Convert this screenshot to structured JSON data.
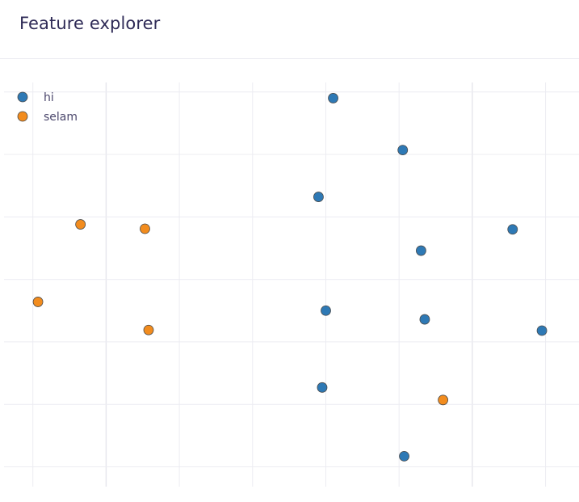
{
  "header": {
    "title": "Feature explorer"
  },
  "colors": {
    "title": "#2e2a56",
    "grid": "#ececf2",
    "grid_major": "#e6e6ec"
  },
  "chart_data": {
    "type": "scatter",
    "title": "",
    "xlabel": "",
    "ylabel": "",
    "xlim": [
      0.0,
      7.8
    ],
    "ylim": [
      0.0,
      6.5
    ],
    "grid": true,
    "legend_position": "top-left",
    "series": [
      {
        "name": "hi",
        "color": "#2e79b5",
        "points": [
          {
            "x": 4.1,
            "y": 5.9
          },
          {
            "x": 5.05,
            "y": 5.07
          },
          {
            "x": 3.9,
            "y": 4.32
          },
          {
            "x": 6.55,
            "y": 3.8
          },
          {
            "x": 5.3,
            "y": 3.46
          },
          {
            "x": 4.0,
            "y": 2.5
          },
          {
            "x": 5.35,
            "y": 2.36
          },
          {
            "x": 6.95,
            "y": 2.18
          },
          {
            "x": 3.95,
            "y": 1.27
          },
          {
            "x": 5.07,
            "y": 0.17
          }
        ]
      },
      {
        "name": "selam",
        "color": "#f28c1e",
        "points": [
          {
            "x": 0.65,
            "y": 3.88
          },
          {
            "x": 1.53,
            "y": 3.81
          },
          {
            "x": 0.07,
            "y": 2.64
          },
          {
            "x": 1.58,
            "y": 2.19
          },
          {
            "x": 5.6,
            "y": 1.07
          }
        ]
      }
    ]
  }
}
